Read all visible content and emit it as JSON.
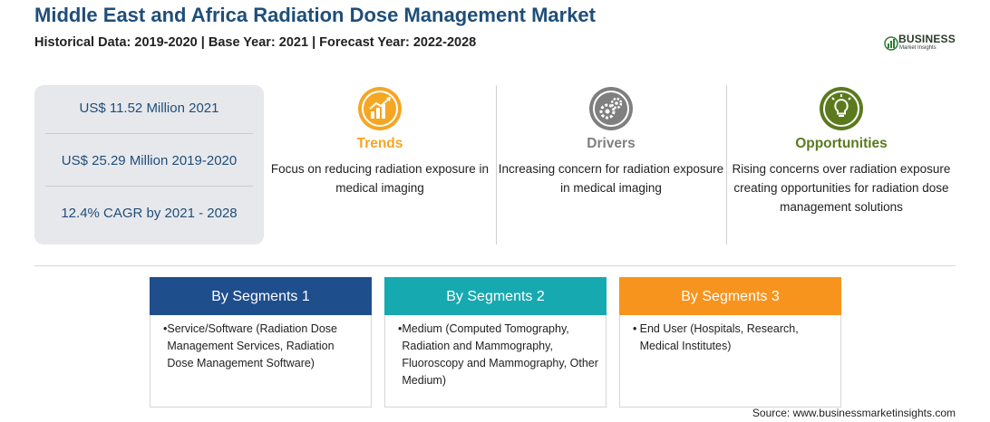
{
  "title": "Middle East and Africa Radiation Dose Management Market",
  "subtitle": "Historical Data: 2019-2020 | Base Year: 2021 | Forecast Year: 2022-2028",
  "logo": {
    "word": "BUSINESS",
    "sub": "Market Insights"
  },
  "stats": [
    "US$ 11.52 Million 2021",
    "US$ 25.29 Million 2019-2020",
    "12.4% CAGR by 2021 - 2028"
  ],
  "columns": [
    {
      "title": "Trends",
      "text": "Focus on reducing radiation exposure in medical imaging",
      "color": "#f5a623",
      "icon": "chart-growth-icon"
    },
    {
      "title": "Drivers",
      "text": "Increasing concern for radiation exposure in medical imaging",
      "color": "#7f7f7f",
      "icon": "gears-icon"
    },
    {
      "title": "Opportunities",
      "text": "Rising concerns over radiation exposure creating opportunities for radiation dose management solutions",
      "color": "#5b7a1e",
      "icon": "lightbulb-icon"
    }
  ],
  "segments": [
    {
      "heading": "By Segments 1",
      "color": "#1f4e8c",
      "item": "Service/Software (Radiation Dose Management Services, Radiation Dose Management Software)"
    },
    {
      "heading": "By Segments 2",
      "color": "#17a9b0",
      "item": "Medium (Computed Tomography, Radiation and Mammography, Fluoroscopy and Mammography, Other Medium)"
    },
    {
      "heading": "By Segments 3",
      "color": "#f7941d",
      "item": "End User (Hospitals, Research, Medical Institutes)"
    }
  ],
  "source": "Source: www.businessmarketinsights.com"
}
